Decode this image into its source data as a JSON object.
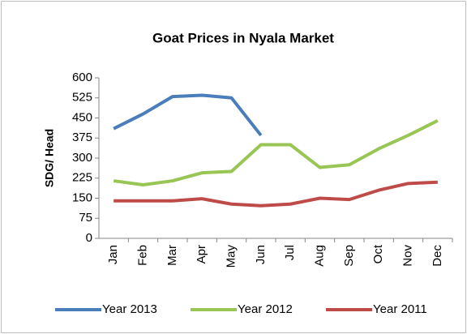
{
  "chart_data": {
    "type": "line",
    "title": "Goat Prices in Nyala Market",
    "y_label": "SDG/ Head",
    "categories": [
      "Jan",
      "Feb",
      "Mar",
      "Apr",
      "May",
      "Jun",
      "Jul",
      "Aug",
      "Sep",
      "Oct",
      "Nov",
      "Dec"
    ],
    "series": [
      {
        "name": "Year 2013",
        "color": "#4a7ebb",
        "values": [
          410,
          465,
          530,
          535,
          525,
          385,
          null,
          null,
          null,
          null,
          null,
          null
        ]
      },
      {
        "name": "Year 2012",
        "color": "#98c554",
        "values": [
          215,
          200,
          215,
          245,
          250,
          350,
          350,
          265,
          275,
          335,
          385,
          440
        ]
      },
      {
        "name": "Year 2011",
        "color": "#be4b48",
        "values": [
          140,
          140,
          140,
          148,
          128,
          122,
          128,
          150,
          145,
          180,
          205,
          210
        ]
      }
    ],
    "ylim": [
      0,
      600
    ],
    "yticks": [
      0,
      75,
      150,
      225,
      300,
      375,
      450,
      525,
      600
    ],
    "grid": false,
    "legend": "bottom"
  }
}
